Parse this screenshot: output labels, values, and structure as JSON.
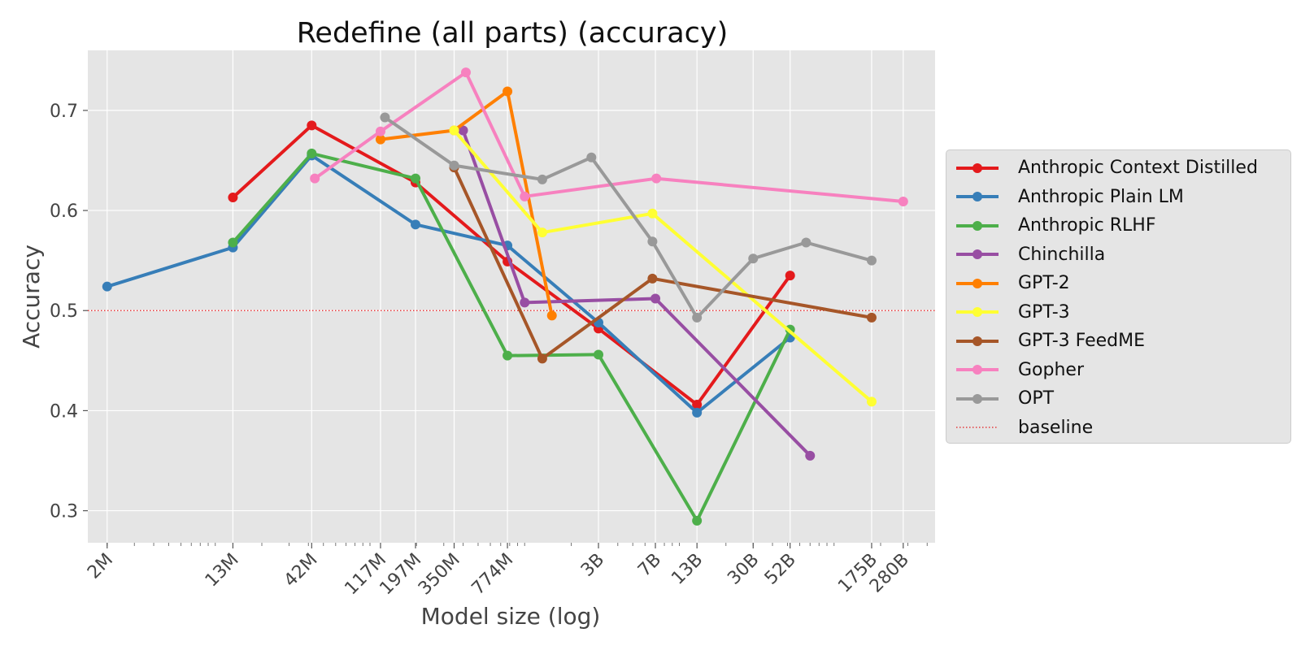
{
  "chart_data": {
    "type": "line",
    "title": "Redefine (all parts) (accuracy)",
    "xlabel": "Model size (log)",
    "ylabel": "Accuracy",
    "xscale": "log",
    "xlim": [
      1500000,
      450000000000
    ],
    "ylim": [
      0.268,
      0.76
    ],
    "grid": true,
    "legend_position": "right",
    "x_ticks": [
      {
        "value": 2000000,
        "label": "2M"
      },
      {
        "value": 13000000,
        "label": "13M"
      },
      {
        "value": 42000000,
        "label": "42M"
      },
      {
        "value": 117000000,
        "label": "117M"
      },
      {
        "value": 197000000,
        "label": "197M"
      },
      {
        "value": 350000000,
        "label": "350M"
      },
      {
        "value": 774000000,
        "label": "774M"
      },
      {
        "value": 3000000000,
        "label": "3B"
      },
      {
        "value": 7000000000,
        "label": "7B"
      },
      {
        "value": 13000000000,
        "label": "13B"
      },
      {
        "value": 30000000000,
        "label": "30B"
      },
      {
        "value": 52000000000,
        "label": "52B"
      },
      {
        "value": 175000000000,
        "label": "175B"
      },
      {
        "value": 280000000000,
        "label": "280B"
      }
    ],
    "y_ticks": [
      0.3,
      0.4,
      0.5,
      0.6,
      0.7
    ],
    "y_tick_labels": [
      "0.3",
      "0.4",
      "0.5",
      "0.6",
      "0.7"
    ],
    "series": [
      {
        "name": "Anthropic Context Distilled",
        "color": "#e41a1c",
        "points": [
          [
            13000000,
            0.613
          ],
          [
            42000000,
            0.685
          ],
          [
            197000000,
            0.628
          ],
          [
            774000000,
            0.549
          ],
          [
            3000000000,
            0.482
          ],
          [
            13000000000,
            0.406
          ],
          [
            52000000000,
            0.535
          ]
        ]
      },
      {
        "name": "Anthropic Plain LM",
        "color": "#377eb8",
        "points": [
          [
            2000000,
            0.524
          ],
          [
            13000000,
            0.563
          ],
          [
            42000000,
            0.655
          ],
          [
            197000000,
            0.586
          ],
          [
            774000000,
            0.565
          ],
          [
            3000000000,
            0.488
          ],
          [
            13000000000,
            0.398
          ],
          [
            52000000000,
            0.473
          ]
        ]
      },
      {
        "name": "Anthropic RLHF",
        "color": "#4daf4a",
        "points": [
          [
            13000000,
            0.568
          ],
          [
            42000000,
            0.657
          ],
          [
            197000000,
            0.632
          ],
          [
            774000000,
            0.455
          ],
          [
            3000000000,
            0.456
          ],
          [
            13000000000,
            0.29
          ],
          [
            52000000000,
            0.481
          ]
        ]
      },
      {
        "name": "Chinchilla",
        "color": "#984ea3",
        "points": [
          [
            400000000,
            0.68
          ],
          [
            1000000000,
            0.508
          ],
          [
            7000000000,
            0.512
          ],
          [
            70000000000,
            0.355
          ]
        ]
      },
      {
        "name": "GPT-2",
        "color": "#ff7f00",
        "points": [
          [
            117000000,
            0.671
          ],
          [
            350000000,
            0.68
          ],
          [
            774000000,
            0.719
          ],
          [
            1500000000,
            0.495
          ]
        ]
      },
      {
        "name": "GPT-3",
        "color": "#ffff33",
        "points": [
          [
            350000000,
            0.68
          ],
          [
            1300000000,
            0.578
          ],
          [
            6700000000,
            0.597
          ],
          [
            175000000000,
            0.409
          ]
        ]
      },
      {
        "name": "GPT-3 FeedME",
        "color": "#a65628",
        "points": [
          [
            350000000,
            0.643
          ],
          [
            1300000000,
            0.452
          ],
          [
            6700000000,
            0.532
          ],
          [
            175000000000,
            0.493
          ]
        ]
      },
      {
        "name": "Gopher",
        "color": "#f781bf",
        "points": [
          [
            44000000,
            0.632
          ],
          [
            117000000,
            0.679
          ],
          [
            417000000,
            0.738
          ],
          [
            1000000000,
            0.614
          ],
          [
            7100000000,
            0.632
          ],
          [
            280000000000,
            0.609
          ]
        ]
      },
      {
        "name": "OPT",
        "color": "#999999",
        "points": [
          [
            125000000,
            0.693
          ],
          [
            350000000,
            0.645
          ],
          [
            1300000000,
            0.631
          ],
          [
            2700000000,
            0.653
          ],
          [
            6700000000,
            0.569
          ],
          [
            13000000000,
            0.493
          ],
          [
            30000000000,
            0.552
          ],
          [
            66000000000,
            0.568
          ],
          [
            175000000000,
            0.55
          ]
        ]
      }
    ],
    "baseline": {
      "name": "baseline",
      "value": 0.5,
      "color": "#e41a1c",
      "style": "dotted"
    }
  }
}
